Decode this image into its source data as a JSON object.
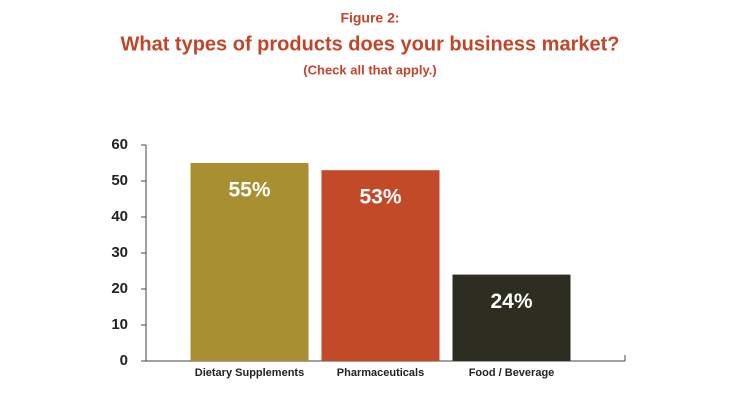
{
  "chart_data": {
    "type": "bar",
    "figure_label": "Figure 2:",
    "title": "What types of products does your business market?",
    "subtitle": "(Check all that apply.)",
    "categories": [
      "Dietary Supplements",
      "Pharmaceuticals",
      "Food / Beverage"
    ],
    "values": [
      55,
      53,
      24
    ],
    "value_labels": [
      "55%",
      "53%",
      "24%"
    ],
    "colors": [
      "#a88f31",
      "#c24a29",
      "#2d2d22"
    ],
    "ylim": [
      0,
      60
    ],
    "yticks": [
      0,
      10,
      20,
      30,
      40,
      50,
      60
    ],
    "grid": false
  }
}
